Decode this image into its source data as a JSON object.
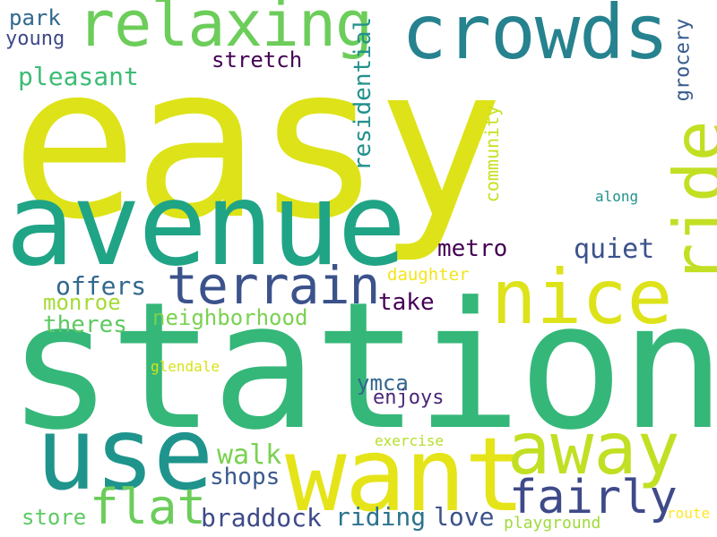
{
  "words": [
    {
      "text": "easy",
      "color": "#dde318"
    },
    {
      "text": "station",
      "color": "#35b779"
    },
    {
      "text": "avenue",
      "color": "#20a486"
    },
    {
      "text": "use",
      "color": "#1f948c"
    },
    {
      "text": "want",
      "color": "#e5e419"
    },
    {
      "text": "crowds",
      "color": "#26828e"
    },
    {
      "text": "relaxing",
      "color": "#6ccd5a"
    },
    {
      "text": "nice",
      "color": "#dde318"
    },
    {
      "text": "terrain",
      "color": "#3b528b"
    },
    {
      "text": "away",
      "color": "#c2df23"
    },
    {
      "text": "ride",
      "color": "#c2df23"
    },
    {
      "text": "fairly",
      "color": "#3e4a89"
    },
    {
      "text": "flat",
      "color": "#6ccd5a"
    },
    {
      "text": "residential",
      "color": "#21918c"
    },
    {
      "text": "community",
      "color": "#c8e020"
    },
    {
      "text": "grocery",
      "color": "#375b8d"
    },
    {
      "text": "quiet",
      "color": "#3b528b"
    },
    {
      "text": "metro",
      "color": "#440154"
    },
    {
      "text": "pleasant",
      "color": "#3dbc74"
    },
    {
      "text": "stretch",
      "color": "#440154"
    },
    {
      "text": "park",
      "color": "#31688e"
    },
    {
      "text": "young",
      "color": "#3e4989"
    },
    {
      "text": "offers",
      "color": "#31688e"
    },
    {
      "text": "monroe",
      "color": "#a5db36"
    },
    {
      "text": "theres",
      "color": "#5ec962"
    },
    {
      "text": "neighborhood",
      "color": "#7ad151"
    },
    {
      "text": "take",
      "color": "#440154"
    },
    {
      "text": "daughter",
      "color": "#f1e51d"
    },
    {
      "text": "walk",
      "color": "#7ad151"
    },
    {
      "text": "shops",
      "color": "#38598c"
    },
    {
      "text": "ymca",
      "color": "#32658e"
    },
    {
      "text": "enjoys",
      "color": "#482878"
    },
    {
      "text": "braddock",
      "color": "#3e4a89"
    },
    {
      "text": "riding",
      "color": "#2c738e"
    },
    {
      "text": "love",
      "color": "#3b528b"
    },
    {
      "text": "store",
      "color": "#5ec962"
    },
    {
      "text": "exercise",
      "color": "#b5de2b"
    },
    {
      "text": "playground",
      "color": "#9fda3a"
    },
    {
      "text": "route",
      "color": "#fde725"
    },
    {
      "text": "glendale",
      "color": "#d8e219"
    },
    {
      "text": "along",
      "color": "#21918c"
    }
  ]
}
